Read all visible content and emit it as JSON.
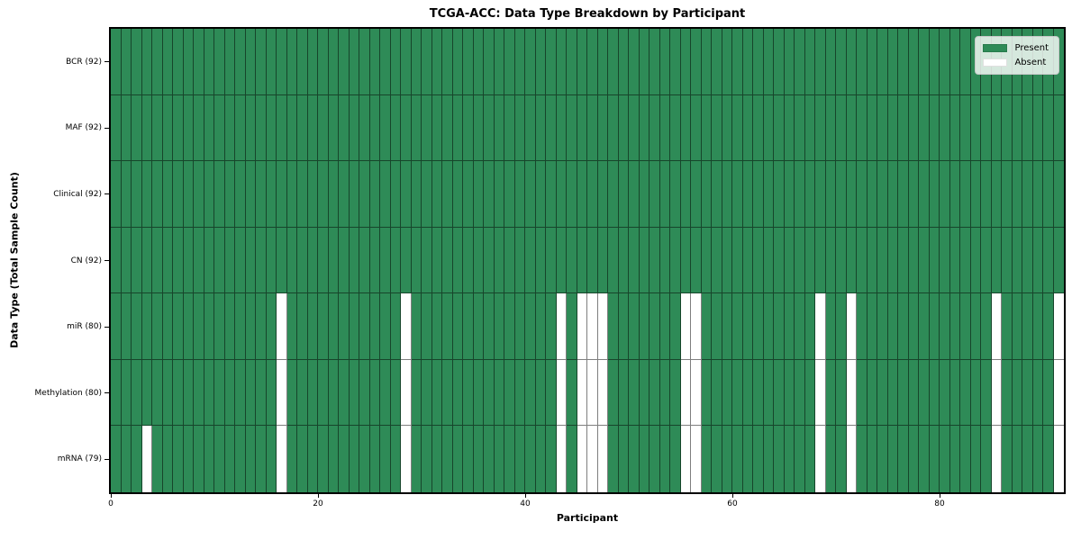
{
  "chart_data": {
    "type": "heatmap",
    "title": "TCGA-ACC: Data Type Breakdown by Participant",
    "xlabel": "Participant",
    "ylabel": "Data Type (Total Sample Count)",
    "n_participants": 92,
    "x_ticks": [
      0,
      20,
      40,
      60,
      80
    ],
    "grid": "cell edges on",
    "legend_position": "upper right",
    "legend": [
      {
        "label": "Present",
        "color": "#2e8b57"
      },
      {
        "label": "Absent",
        "color": "#ffffff"
      }
    ],
    "rows": [
      {
        "label": "BCR (92)",
        "data_type": "BCR",
        "present_count": 92,
        "absent_participants": []
      },
      {
        "label": "MAF (92)",
        "data_type": "MAF",
        "present_count": 92,
        "absent_participants": []
      },
      {
        "label": "Clinical (92)",
        "data_type": "Clinical",
        "present_count": 92,
        "absent_participants": []
      },
      {
        "label": "CN (92)",
        "data_type": "CN",
        "present_count": 92,
        "absent_participants": []
      },
      {
        "label": "miR (80)",
        "data_type": "miR",
        "present_count": 80,
        "absent_participants": [
          16,
          28,
          43,
          45,
          46,
          47,
          55,
          56,
          68,
          71,
          85,
          91
        ]
      },
      {
        "label": "Methylation (80)",
        "data_type": "Methylation",
        "present_count": 80,
        "absent_participants": [
          16,
          28,
          43,
          45,
          46,
          47,
          55,
          56,
          68,
          71,
          85,
          91
        ]
      },
      {
        "label": "mRNA (79)",
        "data_type": "mRNA",
        "present_count": 79,
        "absent_participants": [
          3,
          16,
          28,
          43,
          45,
          46,
          47,
          55,
          56,
          68,
          71,
          85,
          91
        ]
      }
    ]
  }
}
